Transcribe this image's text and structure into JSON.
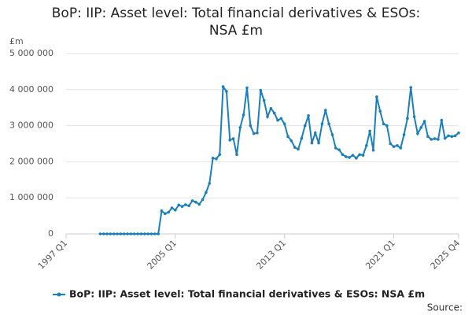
{
  "chart_data": {
    "type": "line",
    "title": "BoP: IIP: Asset level: Total financial derivatives & ESOs: NSA £m",
    "y_unit_label": "£m",
    "source": "Source:",
    "categories": [
      "1997 Q1",
      null,
      null,
      null,
      null,
      null,
      null,
      null,
      null,
      null,
      null,
      null,
      null,
      null,
      null,
      null,
      null,
      null,
      null,
      null,
      null,
      null,
      null,
      null,
      null,
      null,
      null,
      null,
      null,
      null,
      null,
      null,
      "2005 Q1",
      null,
      null,
      null,
      null,
      null,
      null,
      null,
      null,
      null,
      null,
      null,
      null,
      null,
      null,
      null,
      null,
      null,
      null,
      null,
      null,
      null,
      null,
      null,
      null,
      null,
      null,
      null,
      null,
      null,
      null,
      null,
      "2013 Q1",
      null,
      null,
      null,
      null,
      null,
      null,
      null,
      null,
      null,
      null,
      null,
      null,
      null,
      null,
      null,
      null,
      null,
      null,
      null,
      null,
      null,
      null,
      null,
      null,
      null,
      null,
      null,
      null,
      null,
      null,
      null,
      "2021 Q1",
      null,
      null,
      null,
      null,
      null,
      null,
      null,
      null,
      null,
      null,
      null,
      null,
      null,
      null,
      null,
      null,
      null,
      null,
      "2025 Q4"
    ],
    "series": [
      {
        "name": "BoP: IIP: Asset level: Total financial derivatives & ESOs: NSA £m",
        "color": "#1b7fbd",
        "values": [
          null,
          null,
          null,
          null,
          null,
          null,
          null,
          null,
          null,
          null,
          0,
          0,
          0,
          0,
          0,
          0,
          0,
          0,
          0,
          0,
          0,
          0,
          0,
          0,
          0,
          0,
          0,
          0,
          640000,
          560000,
          600000,
          720000,
          660000,
          800000,
          760000,
          810000,
          780000,
          920000,
          880000,
          820000,
          950000,
          1150000,
          1400000,
          2100000,
          2080000,
          2200000,
          4080000,
          3950000,
          2600000,
          2640000,
          2200000,
          2950000,
          3300000,
          4050000,
          3000000,
          2780000,
          2800000,
          3980000,
          3700000,
          3250000,
          3480000,
          3350000,
          3150000,
          3200000,
          3050000,
          2700000,
          2580000,
          2400000,
          2350000,
          2650000,
          3000000,
          3280000,
          2520000,
          2800000,
          2520000,
          3050000,
          3430000,
          3050000,
          2750000,
          2380000,
          2330000,
          2200000,
          2140000,
          2120000,
          2180000,
          2100000,
          2200000,
          2180000,
          2450000,
          2850000,
          2320000,
          3800000,
          3400000,
          3050000,
          3000000,
          2500000,
          2420000,
          2450000,
          2380000,
          2750000,
          3200000,
          4060000,
          3250000,
          2780000,
          2950000,
          3120000,
          2700000,
          2620000,
          2640000,
          2620000,
          3150000,
          2650000,
          2720000,
          2700000,
          2720000,
          2800000
        ]
      }
    ],
    "ylim": [
      0,
      5000000
    ],
    "yticks": [
      0,
      {
        "value": 1000000,
        "label": "1 000 000"
      },
      {
        "value": 2000000,
        "label": "2 000 000"
      },
      {
        "value": 3000000,
        "label": "3 000 000"
      },
      {
        "value": 4000000,
        "label": "4 000 000"
      },
      {
        "value": 5000000,
        "label": "5 000 000"
      }
    ],
    "grid": true,
    "legend": "bottom"
  }
}
